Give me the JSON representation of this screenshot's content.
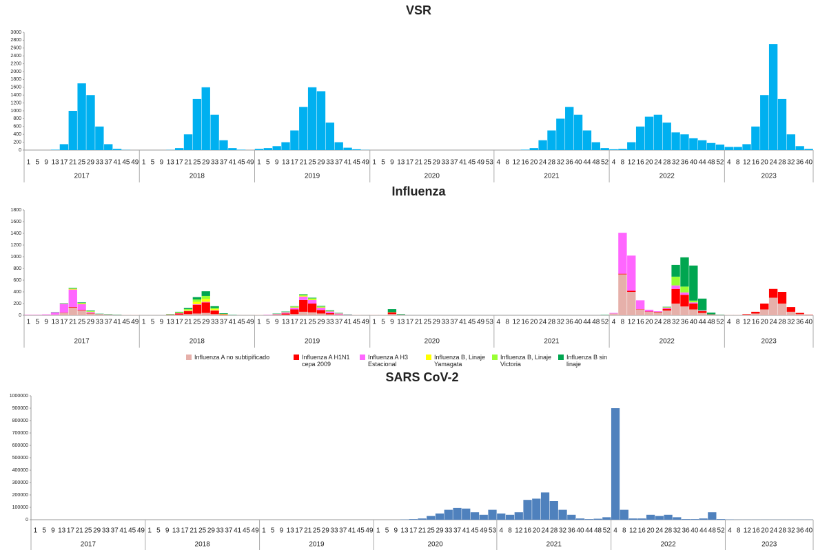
{
  "chart_data": [
    {
      "type": "bar",
      "title": "VSR",
      "color": "#00b0f0",
      "ylim": [
        0,
        3000
      ],
      "yticks": [
        0,
        200,
        400,
        600,
        800,
        1000,
        1200,
        1400,
        1600,
        1800,
        2000,
        2200,
        2400,
        2600,
        2800,
        3000
      ],
      "year_groups": [
        {
          "label": "2017",
          "weeks": [
            1,
            5,
            9,
            13,
            17,
            21,
            25,
            29,
            33,
            37,
            41,
            45,
            49
          ]
        },
        {
          "label": "2018",
          "weeks": [
            1,
            5,
            9,
            13,
            17,
            21,
            25,
            29,
            33,
            37,
            41,
            45,
            49
          ]
        },
        {
          "label": "2019",
          "weeks": [
            1,
            5,
            9,
            13,
            17,
            21,
            25,
            29,
            33,
            37,
            41,
            45,
            49
          ]
        },
        {
          "label": "2020",
          "weeks": [
            1,
            5,
            9,
            13,
            17,
            21,
            25,
            29,
            33,
            37,
            41,
            45,
            49,
            53
          ]
        },
        {
          "label": "2021",
          "weeks": [
            4,
            8,
            12,
            16,
            20,
            24,
            28,
            32,
            36,
            40,
            44,
            48,
            52
          ]
        },
        {
          "label": "2022",
          "weeks": [
            4,
            8,
            12,
            16,
            20,
            24,
            28,
            32,
            36,
            40,
            44,
            48,
            52
          ]
        },
        {
          "label": "2023",
          "weeks": [
            4,
            8,
            12,
            16,
            20,
            24,
            28,
            32,
            36,
            40
          ]
        }
      ],
      "values": [
        0,
        0,
        0,
        10,
        150,
        1000,
        1700,
        1400,
        600,
        150,
        30,
        5,
        0,
        0,
        0,
        0,
        5,
        50,
        400,
        1300,
        1600,
        900,
        250,
        50,
        10,
        0,
        30,
        50,
        100,
        200,
        500,
        1100,
        1600,
        1500,
        700,
        200,
        60,
        20,
        5,
        0,
        0,
        0,
        0,
        0,
        0,
        0,
        0,
        0,
        0,
        0,
        0,
        0,
        0,
        0,
        0,
        0,
        10,
        50,
        250,
        500,
        800,
        1100,
        900,
        500,
        200,
        50,
        20,
        30,
        200,
        600,
        850,
        900,
        700,
        450,
        400,
        300,
        250,
        180,
        140,
        80,
        80,
        150,
        600,
        1400,
        2700,
        1300,
        400,
        100,
        30
      ]
    },
    {
      "type": "stacked_bar",
      "title": "Influenza",
      "ylim": [
        0,
        1800
      ],
      "yticks": [
        0,
        200,
        400,
        600,
        800,
        1000,
        1200,
        1400,
        1600,
        1800
      ],
      "year_groups": [
        {
          "label": "2017",
          "weeks": [
            1,
            5,
            9,
            13,
            17,
            21,
            25,
            29,
            33,
            37,
            41,
            45,
            49
          ]
        },
        {
          "label": "2018",
          "weeks": [
            1,
            5,
            9,
            13,
            17,
            21,
            25,
            29,
            33,
            37,
            41,
            45,
            49
          ]
        },
        {
          "label": "2019",
          "weeks": [
            1,
            5,
            9,
            13,
            17,
            21,
            25,
            29,
            33,
            37,
            41,
            45,
            49
          ]
        },
        {
          "label": "2020",
          "weeks": [
            1,
            5,
            9,
            13,
            17,
            21,
            25,
            29,
            33,
            37,
            41,
            45,
            49,
            53
          ]
        },
        {
          "label": "2021",
          "weeks": [
            4,
            8,
            12,
            16,
            20,
            24,
            28,
            32,
            36,
            40,
            44,
            48,
            52
          ]
        },
        {
          "label": "2022",
          "weeks": [
            4,
            8,
            12,
            16,
            20,
            24,
            28,
            32,
            36,
            40,
            44,
            48,
            52
          ]
        },
        {
          "label": "2023",
          "weeks": [
            4,
            8,
            12,
            16,
            20,
            24,
            28,
            32,
            36,
            40
          ]
        }
      ],
      "series": [
        {
          "name": "Influenza A no subtipificado",
          "color": "#e6b0aa",
          "values": [
            5,
            5,
            5,
            10,
            40,
            130,
            80,
            30,
            10,
            5,
            5,
            5,
            5,
            2,
            2,
            2,
            5,
            10,
            20,
            30,
            40,
            20,
            5,
            2,
            2,
            2,
            5,
            5,
            5,
            10,
            20,
            60,
            50,
            30,
            15,
            10,
            5,
            5,
            2,
            5,
            5,
            20,
            10,
            0,
            0,
            0,
            0,
            0,
            0,
            0,
            0,
            0,
            0,
            0,
            0,
            0,
            0,
            0,
            0,
            0,
            0,
            0,
            0,
            0,
            0,
            2,
            30,
            700,
            400,
            100,
            60,
            50,
            80,
            200,
            150,
            100,
            40,
            10,
            5,
            5,
            5,
            10,
            30,
            100,
            300,
            200,
            60,
            20,
            5
          ]
        },
        {
          "name": "Influenza A H1N1 cepa 2009",
          "color": "#ff0000",
          "values": [
            0,
            0,
            0,
            0,
            5,
            10,
            10,
            5,
            2,
            0,
            0,
            0,
            0,
            0,
            0,
            0,
            5,
            20,
            50,
            150,
            180,
            60,
            10,
            0,
            0,
            0,
            0,
            0,
            5,
            20,
            80,
            200,
            150,
            60,
            20,
            5,
            0,
            0,
            0,
            0,
            0,
            30,
            0,
            0,
            0,
            0,
            0,
            0,
            0,
            0,
            0,
            0,
            0,
            0,
            0,
            0,
            0,
            0,
            0,
            0,
            0,
            0,
            0,
            0,
            0,
            0,
            0,
            10,
            20,
            5,
            5,
            10,
            30,
            250,
            200,
            100,
            30,
            5,
            0,
            0,
            0,
            10,
            30,
            100,
            150,
            200,
            80,
            20,
            5
          ]
        },
        {
          "name": "Influenza A H3 Estacional",
          "color": "#ff66ff",
          "values": [
            5,
            5,
            10,
            40,
            150,
            300,
            100,
            20,
            5,
            5,
            0,
            0,
            0,
            0,
            0,
            0,
            0,
            5,
            5,
            10,
            10,
            5,
            0,
            0,
            0,
            0,
            0,
            5,
            10,
            20,
            30,
            60,
            60,
            40,
            30,
            15,
            5,
            0,
            0,
            0,
            0,
            0,
            0,
            0,
            0,
            0,
            0,
            0,
            0,
            0,
            0,
            0,
            0,
            0,
            0,
            0,
            0,
            0,
            0,
            0,
            0,
            0,
            0,
            0,
            0,
            0,
            10,
            700,
            600,
            150,
            30,
            10,
            20,
            60,
            40,
            20,
            10,
            0,
            0,
            0,
            0,
            0,
            0,
            0,
            0,
            0,
            0,
            0,
            0
          ]
        },
        {
          "name": "Influenza B, Linaje Yamagata",
          "color": "#ffff00",
          "values": [
            0,
            0,
            0,
            0,
            0,
            10,
            10,
            5,
            0,
            0,
            0,
            0,
            0,
            0,
            0,
            0,
            0,
            5,
            10,
            40,
            50,
            20,
            5,
            0,
            0,
            0,
            0,
            0,
            0,
            0,
            5,
            10,
            10,
            5,
            0,
            0,
            0,
            0,
            0,
            0,
            0,
            0,
            0,
            0,
            0,
            0,
            0,
            0,
            0,
            0,
            0,
            0,
            0,
            0,
            0,
            0,
            0,
            0,
            0,
            0,
            0,
            0,
            0,
            0,
            0,
            0,
            0,
            0,
            0,
            0,
            0,
            0,
            0,
            0,
            0,
            0,
            0,
            0,
            0,
            0,
            0,
            0,
            0,
            0,
            0,
            0,
            0,
            0,
            0
          ]
        },
        {
          "name": "Influenza B, Linaje Victoria",
          "color": "#99ff33",
          "values": [
            0,
            0,
            0,
            0,
            5,
            10,
            10,
            10,
            5,
            5,
            0,
            0,
            0,
            0,
            0,
            0,
            5,
            10,
            20,
            40,
            50,
            20,
            5,
            0,
            0,
            0,
            0,
            0,
            5,
            10,
            15,
            20,
            20,
            15,
            10,
            5,
            0,
            0,
            0,
            0,
            0,
            5,
            0,
            0,
            0,
            0,
            0,
            0,
            0,
            0,
            0,
            0,
            0,
            0,
            0,
            0,
            0,
            0,
            0,
            0,
            0,
            0,
            0,
            0,
            0,
            0,
            0,
            0,
            0,
            0,
            0,
            0,
            10,
            150,
            100,
            30,
            5,
            0,
            0,
            0,
            0,
            0,
            0,
            0,
            0,
            0,
            0,
            0,
            0
          ]
        },
        {
          "name": "Influenza B sin linaje",
          "color": "#00a650",
          "values": [
            0,
            0,
            0,
            5,
            5,
            10,
            10,
            10,
            5,
            5,
            5,
            0,
            0,
            0,
            0,
            0,
            5,
            10,
            20,
            40,
            80,
            30,
            10,
            5,
            0,
            0,
            0,
            0,
            5,
            5,
            5,
            10,
            10,
            10,
            10,
            5,
            5,
            0,
            0,
            0,
            0,
            50,
            10,
            0,
            0,
            0,
            0,
            0,
            0,
            0,
            0,
            0,
            0,
            0,
            0,
            0,
            0,
            0,
            0,
            0,
            0,
            0,
            0,
            0,
            0,
            5,
            0,
            0,
            0,
            0,
            0,
            0,
            5,
            200,
            500,
            600,
            200,
            30,
            5,
            0,
            0,
            0,
            0,
            0,
            0,
            0,
            0,
            0,
            0
          ]
        }
      ]
    },
    {
      "type": "bar",
      "title": "SARS CoV-2",
      "color": "#4f81bd",
      "ylim": [
        0,
        1000000
      ],
      "yticks": [
        0,
        100000,
        200000,
        300000,
        400000,
        500000,
        600000,
        700000,
        800000,
        900000,
        1000000
      ],
      "year_groups": [
        {
          "label": "2017",
          "weeks": [
            1,
            5,
            9,
            13,
            17,
            21,
            25,
            29,
            33,
            37,
            41,
            45,
            49
          ]
        },
        {
          "label": "2018",
          "weeks": [
            1,
            5,
            9,
            13,
            17,
            21,
            25,
            29,
            33,
            37,
            41,
            45,
            49
          ]
        },
        {
          "label": "2019",
          "weeks": [
            1,
            5,
            9,
            13,
            17,
            21,
            25,
            29,
            33,
            37,
            41,
            45,
            49
          ]
        },
        {
          "label": "2020",
          "weeks": [
            1,
            5,
            9,
            13,
            17,
            21,
            25,
            29,
            33,
            37,
            41,
            45,
            49,
            53
          ]
        },
        {
          "label": "2021",
          "weeks": [
            4,
            8,
            12,
            16,
            20,
            24,
            28,
            32,
            36,
            40,
            44,
            48,
            52
          ]
        },
        {
          "label": "2022",
          "weeks": [
            4,
            8,
            12,
            16,
            20,
            24,
            28,
            32,
            36,
            40,
            44,
            48,
            52
          ]
        },
        {
          "label": "2023",
          "weeks": [
            4,
            8,
            12,
            16,
            20,
            24,
            28,
            32,
            36,
            40
          ]
        }
      ],
      "values": [
        0,
        0,
        0,
        0,
        0,
        0,
        0,
        0,
        0,
        0,
        0,
        0,
        0,
        0,
        0,
        0,
        0,
        0,
        0,
        0,
        0,
        0,
        0,
        0,
        0,
        0,
        0,
        0,
        0,
        0,
        0,
        0,
        0,
        0,
        0,
        0,
        0,
        0,
        0,
        0,
        0,
        0,
        2000,
        5000,
        10000,
        30000,
        50000,
        80000,
        95000,
        90000,
        60000,
        40000,
        80000,
        50000,
        40000,
        60000,
        160000,
        170000,
        220000,
        150000,
        80000,
        40000,
        10000,
        5000,
        8000,
        20000,
        900000,
        80000,
        10000,
        10000,
        40000,
        30000,
        40000,
        20000,
        5000,
        5000,
        10000,
        60000,
        5000,
        2000,
        1000,
        1000,
        1000,
        1000,
        1000,
        1000,
        1000,
        1000,
        1000
      ]
    }
  ]
}
